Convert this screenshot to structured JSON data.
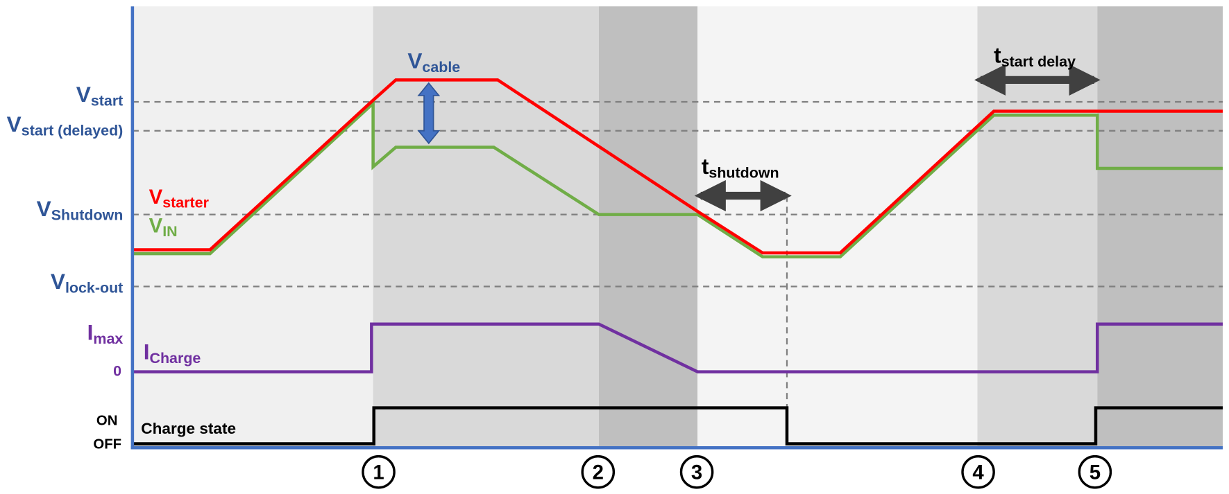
{
  "levels": {
    "v_start": {
      "main": "V",
      "sub": "start"
    },
    "v_start_delayed": {
      "main": "V",
      "sub": "start (delayed)"
    },
    "v_shutdown": {
      "main": "V",
      "sub": "Shutdown"
    },
    "v_lockout": {
      "main": "V",
      "sub": "lock-out"
    },
    "i_max": {
      "main": "I",
      "sub": "max"
    },
    "zero": "0",
    "on": "ON",
    "off": "OFF"
  },
  "signals": {
    "v_starter": {
      "main": "V",
      "sub": "starter"
    },
    "v_in": {
      "main": "V",
      "sub": "IN"
    },
    "i_charge": {
      "main": "I",
      "sub": "Charge"
    },
    "charge_state": "Charge state"
  },
  "annotations": {
    "v_cable": {
      "main": "V",
      "sub": "cable"
    },
    "t_shutdown": {
      "main": "t",
      "sub": "shutdown"
    },
    "t_start_delay": {
      "main": "t",
      "sub": "start delay"
    }
  },
  "events": [
    "1",
    "2",
    "3",
    "4",
    "5"
  ]
}
